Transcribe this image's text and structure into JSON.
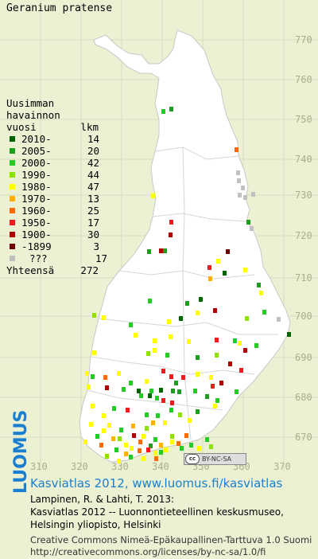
{
  "title": "Geranium pratense",
  "legend": {
    "header": [
      "Uusimman",
      "havainnon",
      "vuosi"
    ],
    "count_header": "lkm",
    "items": [
      {
        "label": "2010-",
        "count": "14",
        "color": "#006400"
      },
      {
        "label": "2005-",
        "count": "20",
        "color": "#1e9e1e"
      },
      {
        "label": "2000-",
        "count": "42",
        "color": "#22cc22"
      },
      {
        "label": "1990-",
        "count": "44",
        "color": "#8ee000"
      },
      {
        "label": "1980-",
        "count": "47",
        "color": "#ffff00"
      },
      {
        "label": "1970-",
        "count": "13",
        "color": "#ffb000"
      },
      {
        "label": "1960-",
        "count": "25",
        "color": "#ff6a00"
      },
      {
        "label": "1950-",
        "count": "17",
        "color": "#ee1c1c"
      },
      {
        "label": "1900-",
        "count": "30",
        "color": "#b00000"
      },
      {
        "label": "-1899",
        "count": "3",
        "color": "#6e0000"
      },
      {
        "label": "???",
        "count": "17",
        "color": "#c0c0c0"
      }
    ],
    "total_label": "Yhteensä",
    "total_count": "272"
  },
  "grid": {
    "y_labels": [
      "770",
      "760",
      "750",
      "740",
      "730",
      "720",
      "710",
      "700",
      "690",
      "680",
      "670"
    ],
    "x_labels": [
      "310",
      "320",
      "330",
      "340",
      "350",
      "360",
      "370"
    ]
  },
  "cc_badge": "BY-NC-SA",
  "cc_logo": "cc",
  "footer": {
    "brand": "LUOMUS",
    "link": "Kasviatlas 2012, www.luomus.fi/kasviatlas",
    "citation_1": "Lampinen, R. & Lahti, T. 2013:",
    "citation_2": "Kasviatlas 2012 -- Luonnontieteellinen keskusmuseo,",
    "citation_3": "Helsingin yliopisto, Helsinki",
    "license_1": "Creative Commons Nimeä-Epäkaupallinen-Tarttuva 1.0 Suomi",
    "license_2": "http://creativecommons.org/licenses/by-nc-sa/1.0/fi"
  }
}
